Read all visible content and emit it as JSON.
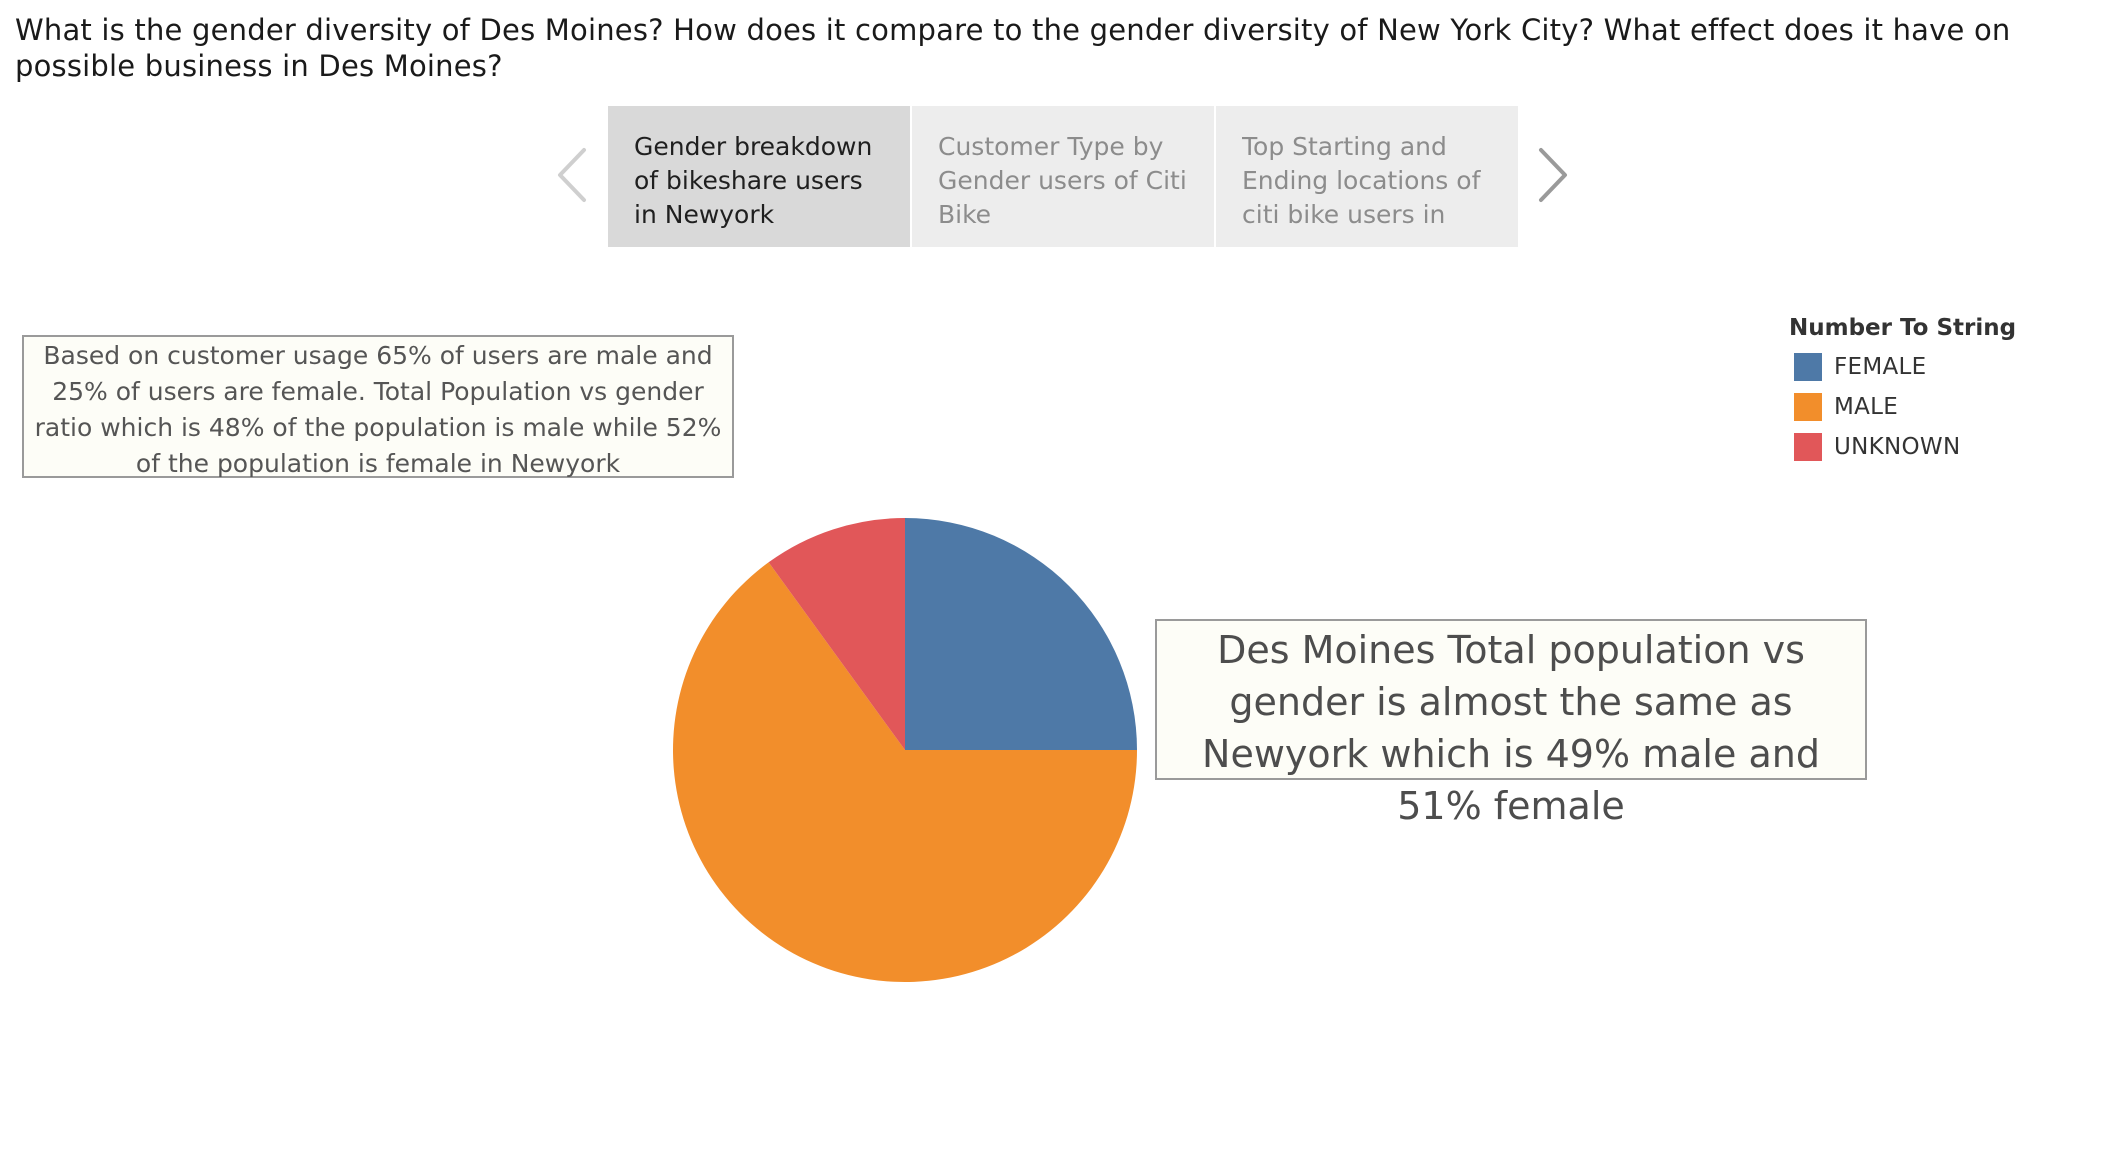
{
  "story": {
    "title": "What is the gender diversity of Des Moines? How does it compare to the gender diversity of New York City? What effect does it have on possible business in Des Moines?",
    "points": [
      {
        "label": "Gender breakdown of bikeshare users in Newyork",
        "active": true
      },
      {
        "label": "Customer Type by Gender users of Citi Bike",
        "active": false
      },
      {
        "label": "Top Starting and Ending locations of citi bike users in",
        "active": false
      }
    ],
    "prev_icon": "chevron-left-icon",
    "next_icon": "chevron-right-icon"
  },
  "annotations": {
    "newyork_note": "Based on customer usage 65% of users are male and 25% of users are female. Total Population vs gender ratio which  is 48% of the population is male while 52% of the population is female in Newyork",
    "desmoines_note": "Des Moines Total population vs gender is almost the same as Newyork which is 49% male and 51% female"
  },
  "legend": {
    "title": "Number To String",
    "items": [
      {
        "label": "FEMALE",
        "color": "#4e79a7"
      },
      {
        "label": "MALE",
        "color": "#f28e2b"
      },
      {
        "label": "UNKNOWN",
        "color": "#e15759"
      }
    ]
  },
  "chart_data": {
    "type": "pie",
    "categories": [
      "FEMALE",
      "MALE",
      "UNKNOWN"
    ],
    "values": [
      25,
      65,
      10
    ],
    "colors": [
      "#4e79a7",
      "#f28e2b",
      "#e15759"
    ],
    "legend_title": "Number To String",
    "legend_position": "top-right"
  }
}
